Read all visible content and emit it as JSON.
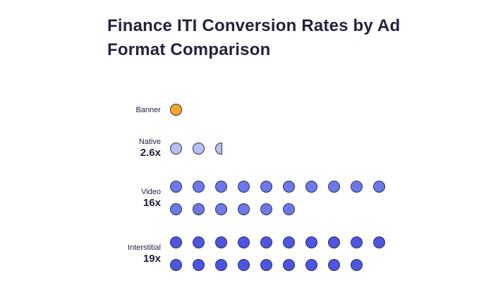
{
  "title": "Finance ITI Conversion Rates by Ad Format Comparison",
  "chart_data": {
    "type": "pictogram",
    "title": "Finance ITI Conversion Rates by Ad Format Comparison",
    "max_dots_per_line": 10,
    "dot_stroke": "#2E2E54",
    "rows": [
      {
        "label": "Banner",
        "value_label": "",
        "value": 1,
        "dot_color": "#F7A428"
      },
      {
        "label": "Native",
        "value_label": "2.6x",
        "value": 2.6,
        "dot_color": "#B7C0F0"
      },
      {
        "label": "Video",
        "value_label": "16x",
        "value": 16,
        "dot_color": "#6B79EA"
      },
      {
        "label": "Interstitial",
        "value_label": "19x",
        "value": 19,
        "dot_color": "#4D55E3"
      }
    ]
  }
}
